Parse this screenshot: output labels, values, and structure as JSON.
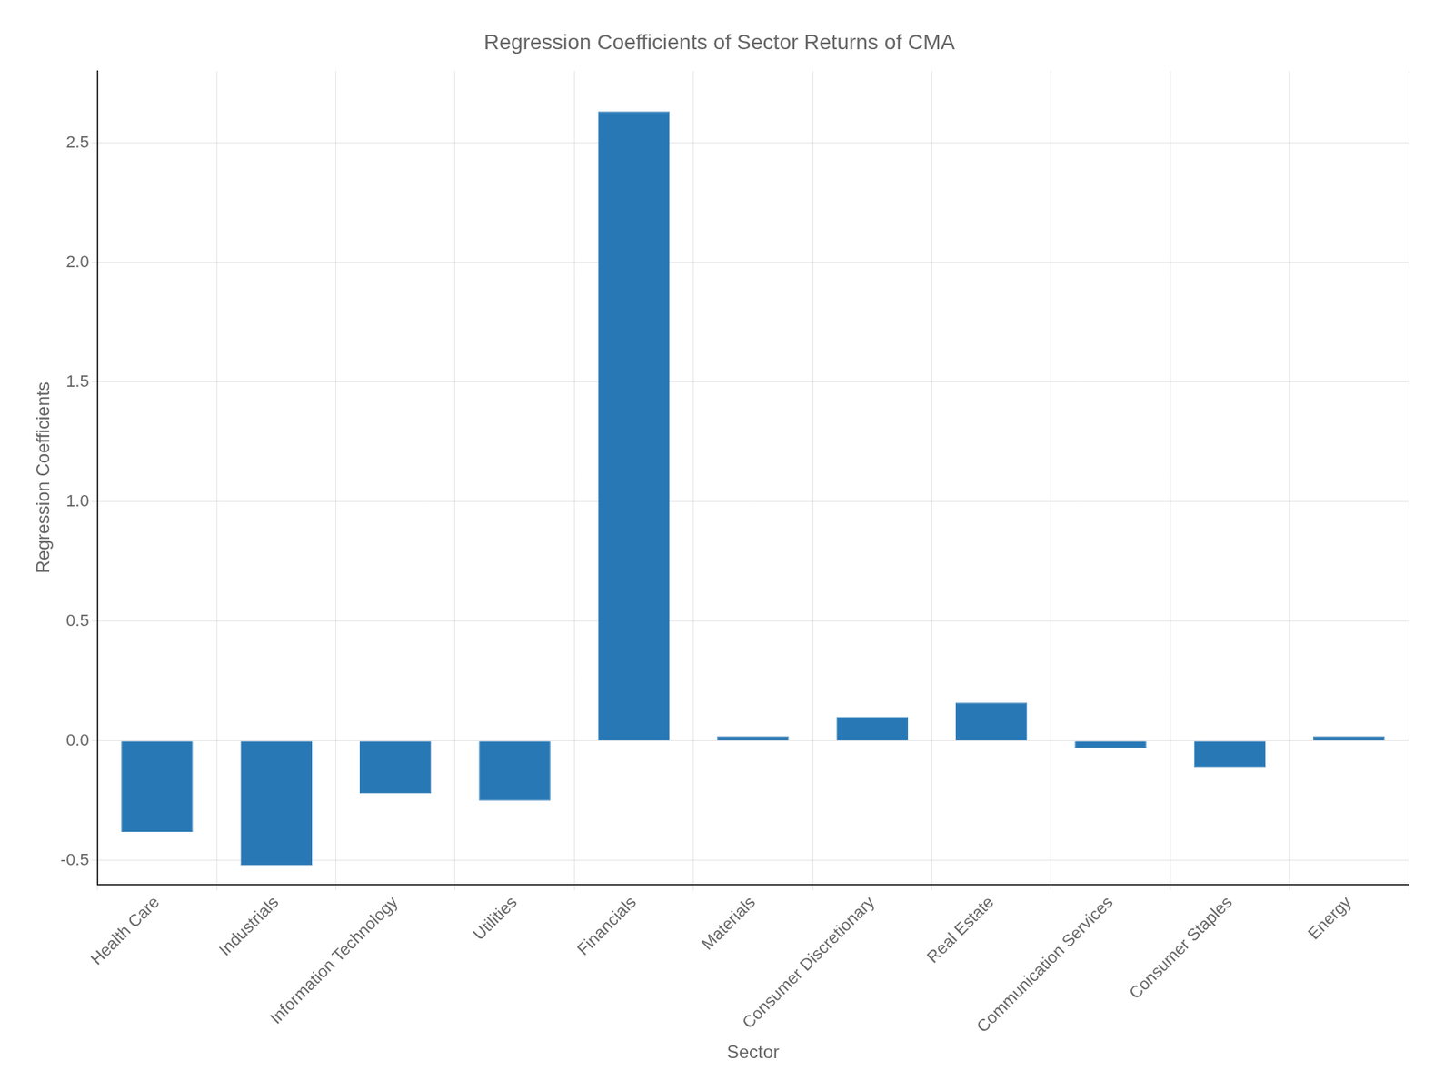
{
  "chart_data": {
    "type": "bar",
    "title": "Regression Coefficients of Sector Returns of CMA",
    "xlabel": "Sector",
    "ylabel": "Regression Coefficients",
    "categories": [
      "Health Care",
      "Industrials",
      "Information Technology",
      "Utilities",
      "Financials",
      "Materials",
      "Consumer Discretionary",
      "Real Estate",
      "Communication Services",
      "Consumer Staples",
      "Energy"
    ],
    "values": [
      -0.38,
      -0.52,
      -0.22,
      -0.25,
      2.63,
      0.02,
      0.1,
      0.16,
      -0.03,
      -0.11,
      0.02
    ],
    "color": "#2878b5",
    "ylim": [
      -0.6,
      2.8
    ],
    "yticks": [
      -0.5,
      {
        "value": 0.0,
        "label": "0.0"
      },
      0.5,
      {
        "value": 1.0,
        "label": "1.0"
      },
      1.5,
      {
        "value": 2.0,
        "label": "2.0"
      },
      2.5
    ],
    "grid": true
  }
}
